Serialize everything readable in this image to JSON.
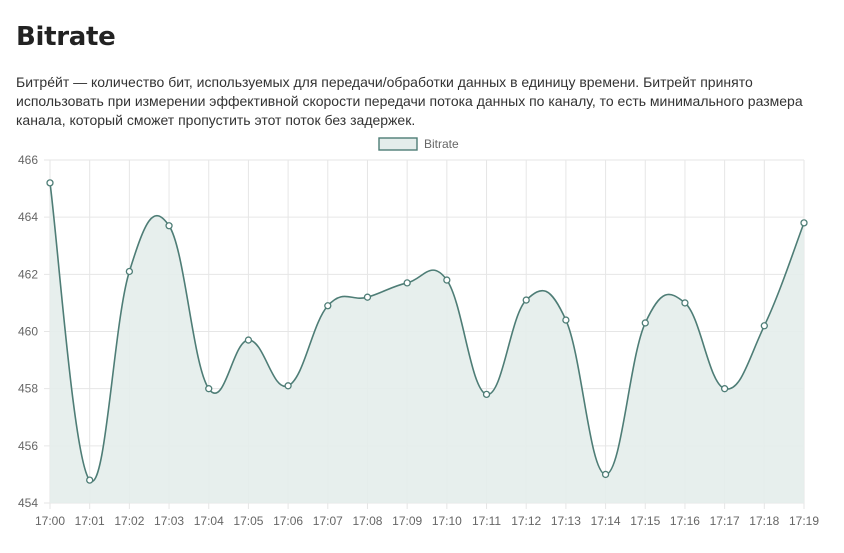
{
  "page": {
    "title": "Bitrate",
    "description": "Битре́йт — количество бит, используемых для передачи/обработки данных в единицу времени. Битрейт принято использовать при измерении эффективной скорости передачи потока данных по каналу, то есть минимального размера канала, который сможет пропустить этот поток без задержек."
  },
  "colors": {
    "line": "#4e7d76",
    "fill": "#e4edeb",
    "grid": "#e6e6e6",
    "point_fill": "#ffffff"
  },
  "chart_data": {
    "type": "area",
    "title": "",
    "xlabel": "",
    "ylabel": "",
    "categories": [
      "17:00",
      "17:01",
      "17:02",
      "17:03",
      "17:04",
      "17:05",
      "17:06",
      "17:07",
      "17:08",
      "17:09",
      "17:10",
      "17:11",
      "17:12",
      "17:13",
      "17:14",
      "17:15",
      "17:16",
      "17:17",
      "17:18",
      "17:19"
    ],
    "series": [
      {
        "name": "Bitrate",
        "values": [
          465.2,
          454.8,
          462.1,
          463.7,
          458.0,
          459.7,
          458.1,
          460.9,
          461.2,
          461.7,
          461.8,
          457.8,
          461.1,
          460.4,
          455.0,
          460.3,
          461.0,
          458.0,
          460.2,
          463.8
        ]
      }
    ],
    "ylim": [
      454,
      466
    ],
    "yticks": [
      "454",
      "456",
      "458",
      "460",
      "462",
      "464",
      "466"
    ],
    "grid": true,
    "legend": "top-center"
  }
}
